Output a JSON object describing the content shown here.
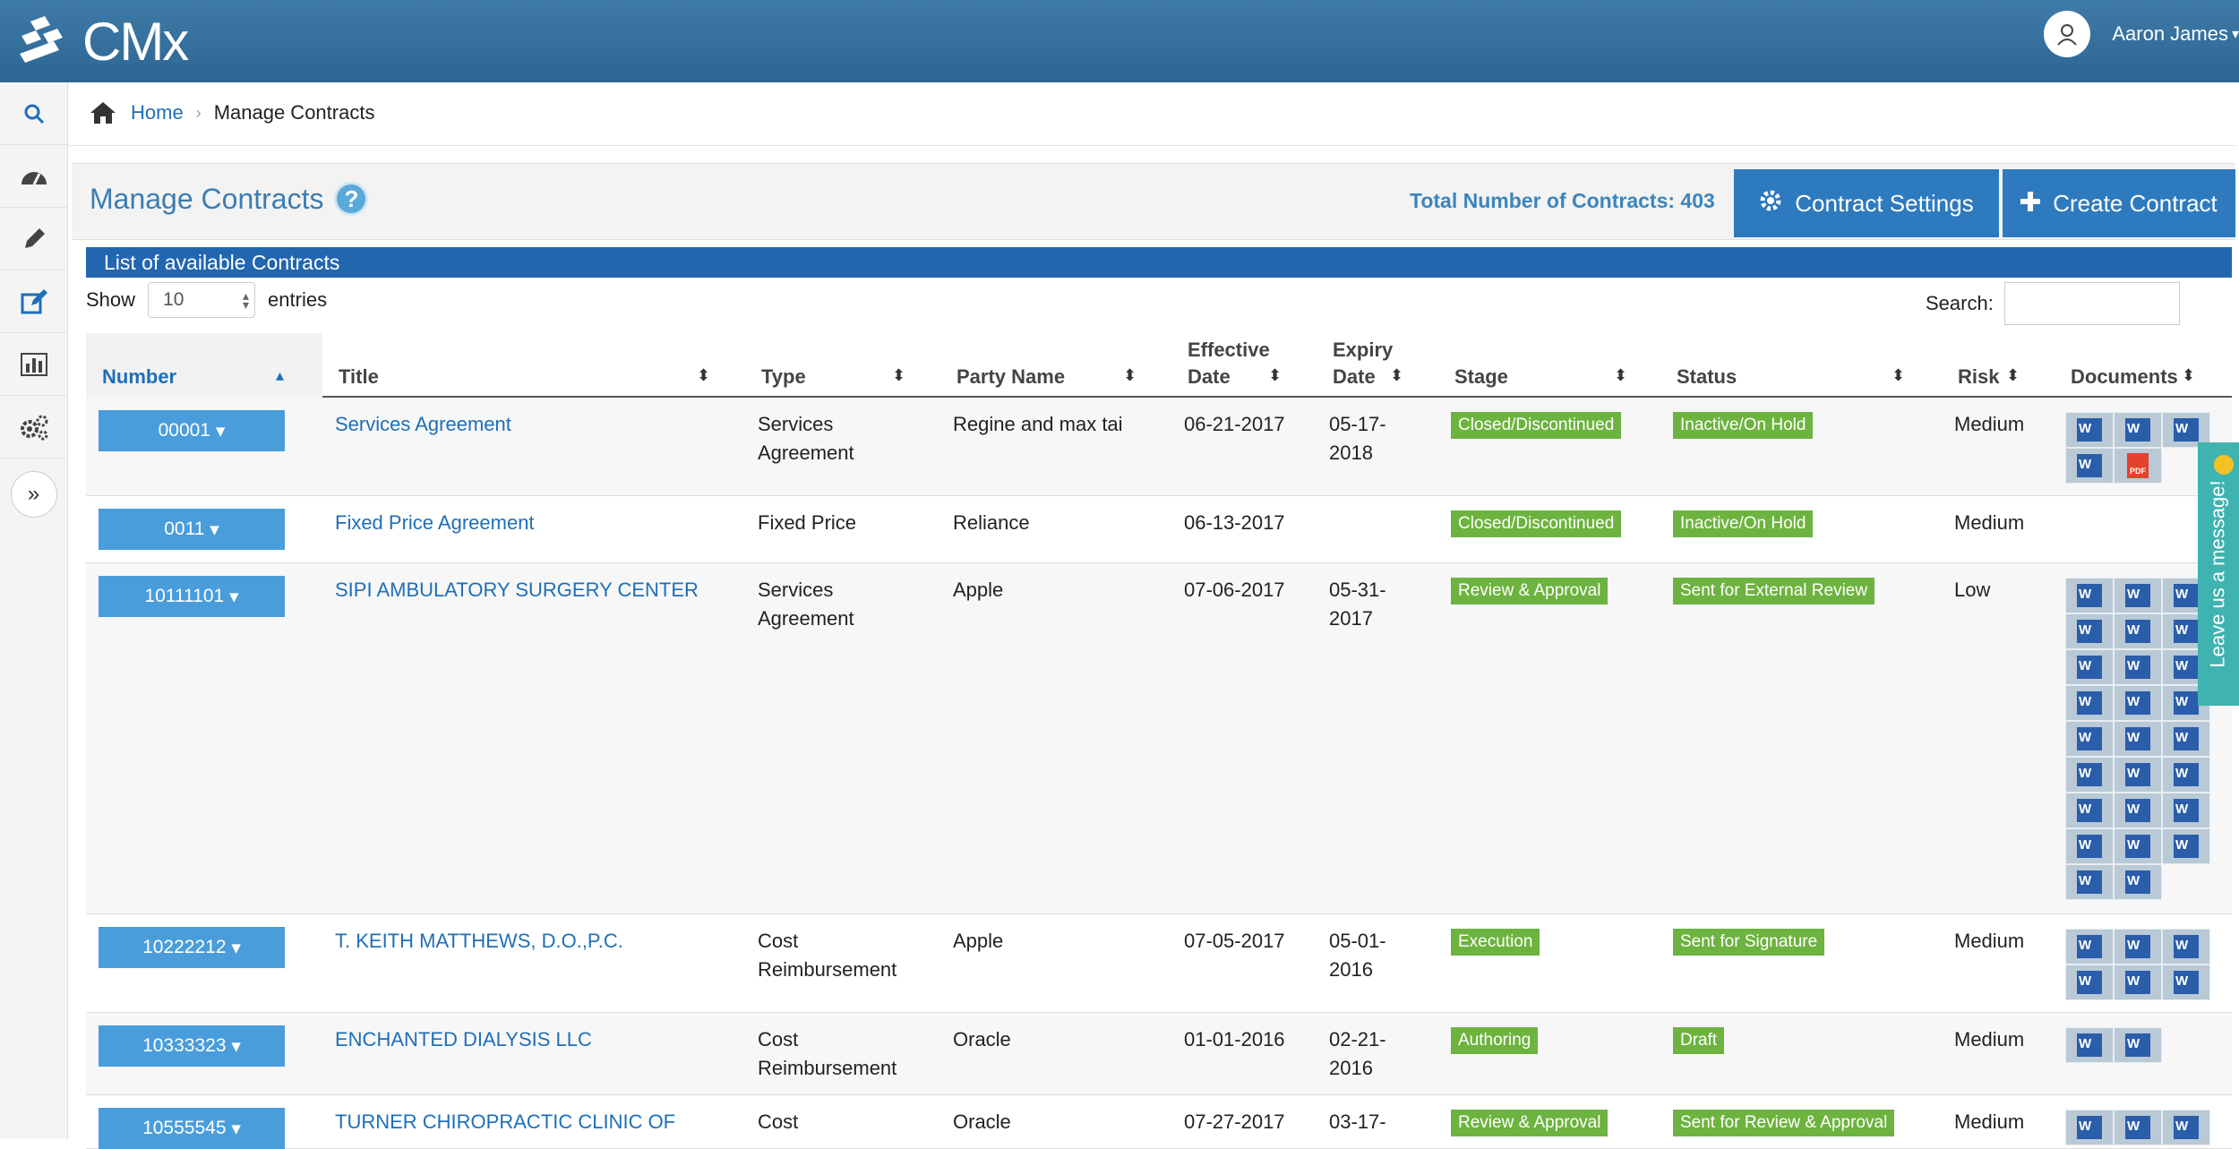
{
  "header": {
    "logo_text": "CMx",
    "user_name": "Aaron James"
  },
  "sidebar": {
    "items": [
      "search-icon",
      "dashboard-icon",
      "pencil-icon",
      "edit-icon",
      "chart-icon",
      "gears-icon"
    ],
    "expand_label": "»"
  },
  "breadcrumb": {
    "home": "Home",
    "current": "Manage Contracts"
  },
  "page": {
    "title": "Manage Contracts",
    "help": "?",
    "total": "Total Number of Contracts: 403",
    "settings_label": "Contract Settings",
    "create_label": "Create Contract",
    "list_title": "List of available Contracts",
    "show_label": "Show",
    "show_value": "10",
    "entries_label": "entries",
    "search_label": "Search:"
  },
  "columns": {
    "number": "Number",
    "title": "Title",
    "type": "Type",
    "party": "Party Name",
    "effective_1": "Effective",
    "effective_2": "Date",
    "expiry_1": "Expiry",
    "expiry_2": "Date",
    "stage": "Stage",
    "status": "Status",
    "risk": "Risk",
    "documents": "Documents"
  },
  "rows": [
    {
      "number": "00001",
      "title": "Services Agreement",
      "type_1": "Services",
      "type_2": "Agreement",
      "party": "Regine and max tai",
      "effective": "06-21-2017",
      "expiry_1": "05-17-",
      "expiry_2": "2018",
      "stage": "Closed/Discontinued",
      "status": "Inactive/On Hold",
      "risk": "Medium"
    },
    {
      "number": "0011",
      "title": "Fixed Price Agreement",
      "type_1": "Fixed Price",
      "type_2": "",
      "party": "Reliance",
      "effective": "06-13-2017",
      "expiry_1": "",
      "expiry_2": "",
      "stage": "Closed/Discontinued",
      "status": "Inactive/On Hold",
      "risk": "Medium"
    },
    {
      "number": "10111101",
      "title": "SIPI AMBULATORY SURGERY CENTER",
      "type_1": "Services",
      "type_2": "Agreement",
      "party": "Apple",
      "effective": "07-06-2017",
      "expiry_1": "05-31-",
      "expiry_2": "2017",
      "stage": "Review & Approval",
      "status": "Sent for External Review",
      "risk": "Low"
    },
    {
      "number": "10222212",
      "title": "T. KEITH MATTHEWS, D.O.,P.C.",
      "type_1": "Cost",
      "type_2": "Reimbursement",
      "party": "Apple",
      "effective": "07-05-2017",
      "expiry_1": "05-01-",
      "expiry_2": "2016",
      "stage": "Execution",
      "status": "Sent for Signature",
      "risk": "Medium"
    },
    {
      "number": "10333323",
      "title": "ENCHANTED DIALYSIS LLC",
      "type_1": "Cost",
      "type_2": "Reimbursement",
      "party": "Oracle",
      "effective": "01-01-2016",
      "expiry_1": "02-21-",
      "expiry_2": "2016",
      "stage": "Authoring",
      "status": "Draft",
      "risk": "Medium"
    },
    {
      "number": "10555545",
      "title": "TURNER CHIROPRACTIC CLINIC OF",
      "type_1": "Cost",
      "type_2": "",
      "party": "Oracle",
      "effective": "07-27-2017",
      "expiry_1": "03-17-",
      "expiry_2": "",
      "stage": "Review & Approval",
      "status": "Sent for Review & Approval",
      "risk": "Medium"
    }
  ],
  "colors": {
    "header": "#2d6692",
    "accent": "#2e7abf",
    "badge": "#6db33f",
    "message_tab": "#3fb3b0"
  },
  "message_tab": "Leave us a message!"
}
